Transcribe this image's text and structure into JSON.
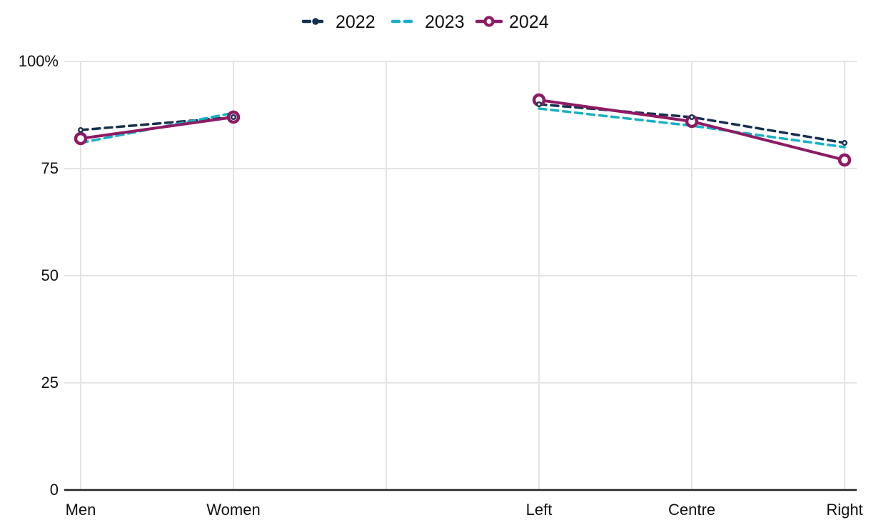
{
  "chart_data": {
    "type": "line",
    "title": "",
    "categories": [
      "Men",
      "Women",
      "",
      "Left",
      "Centre",
      "Right"
    ],
    "x_groups": [
      {
        "name": "gender",
        "categories": [
          "Men",
          "Women"
        ]
      },
      {
        "name": "political-orientation",
        "categories": [
          "Left",
          "Centre",
          "Right"
        ]
      }
    ],
    "y_axis": {
      "range": [
        0,
        100
      ],
      "ticks": [
        0,
        25,
        50,
        75,
        100
      ],
      "tick_labels": [
        "0",
        "25",
        "50",
        "75",
        "100%"
      ]
    },
    "grid": true,
    "legend_position": "top",
    "series": [
      {
        "name": "2022",
        "color": "#16304f",
        "line_style": "dashed",
        "marker": "small-open-circle",
        "values": [
          84,
          87,
          null,
          90,
          87,
          81
        ]
      },
      {
        "name": "2023",
        "color": "#17b0c4",
        "line_style": "dashed",
        "marker": "none",
        "values": [
          81,
          88,
          null,
          89,
          85,
          80
        ]
      },
      {
        "name": "2024",
        "color": "#8d1c64",
        "line_style": "solid",
        "marker": "open-circle",
        "values": [
          82,
          87,
          null,
          91,
          86,
          77
        ]
      }
    ]
  },
  "colors": {
    "background": "#ffffff",
    "gridline": "#e4e4e4",
    "axis_line": "#222222",
    "text": "#111111",
    "series_2022": "#16304f",
    "series_2023": "#17b0c4",
    "series_2024": "#8d1c64"
  }
}
